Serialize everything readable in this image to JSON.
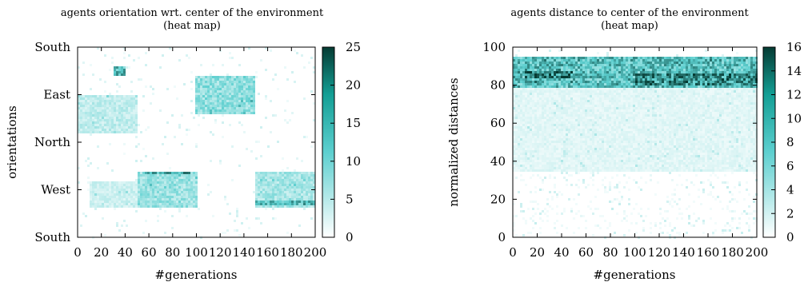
{
  "chart_data": [
    {
      "type": "heatmap",
      "title": "agents orientation wrt. center of the environment",
      "subtitle": "(heat map)",
      "xlabel": "#generations",
      "ylabel": "orientations",
      "xlim": [
        0,
        200
      ],
      "x_ticks": [
        "0",
        "20",
        "40",
        "60",
        "80",
        "100",
        "120",
        "140",
        "160",
        "180",
        "200"
      ],
      "y_ticks": [
        "South",
        "West",
        "North",
        "East",
        "South"
      ],
      "colorbar": {
        "range": [
          0,
          25
        ],
        "ticks": [
          "0",
          "5",
          "10",
          "15",
          "20",
          "25"
        ],
        "low_color": "#ffffff",
        "mid_color": "#5ccfcf",
        "high_color": "#063b33"
      },
      "bands": [
        {
          "x": [
            0,
            50
          ],
          "y": [
            0.55,
            0.75
          ],
          "value": 5
        },
        {
          "x": [
            10,
            50
          ],
          "y": [
            0.15,
            0.3
          ],
          "value": 4
        },
        {
          "x": [
            30,
            40
          ],
          "y": [
            0.85,
            0.9
          ],
          "value": 15
        },
        {
          "x": [
            50,
            100
          ],
          "y": [
            0.15,
            0.35
          ],
          "value": 8
        },
        {
          "x": [
            55,
            95
          ],
          "y": [
            0.33,
            0.35
          ],
          "value": 16
        },
        {
          "x": [
            100,
            150
          ],
          "y": [
            0.65,
            0.85
          ],
          "value": 9
        },
        {
          "x": [
            150,
            200
          ],
          "y": [
            0.15,
            0.35
          ],
          "value": 7
        },
        {
          "x": [
            150,
            200
          ],
          "y": [
            0.17,
            0.19
          ],
          "value": 14
        }
      ]
    },
    {
      "type": "heatmap",
      "title": "agents distance to center of the environment",
      "subtitle": "(heat map)",
      "xlabel": "#generations",
      "ylabel": "normalized distances",
      "xlim": [
        0,
        200
      ],
      "ylim": [
        0,
        100
      ],
      "x_ticks": [
        "0",
        "20",
        "40",
        "60",
        "80",
        "100",
        "120",
        "140",
        "160",
        "180",
        "200"
      ],
      "y_ticks": [
        "0",
        "20",
        "40",
        "60",
        "80",
        "100"
      ],
      "colorbar": {
        "range": [
          0,
          16
        ],
        "ticks": [
          "0",
          "2",
          "4",
          "6",
          "8",
          "10",
          "12",
          "14",
          "16"
        ],
        "low_color": "#ffffff",
        "mid_color": "#5ccfcf",
        "high_color": "#063b33"
      },
      "bands": [
        {
          "x": [
            0,
            200
          ],
          "y": [
            78,
            95
          ],
          "value": 9
        },
        {
          "x": [
            10,
            50
          ],
          "y": [
            83,
            88
          ],
          "value": 13
        },
        {
          "x": [
            100,
            200
          ],
          "y": [
            80,
            86
          ],
          "value": 12
        },
        {
          "x": [
            0,
            200
          ],
          "y": [
            35,
            78
          ],
          "value": 1.5
        },
        {
          "x": [
            0,
            200
          ],
          "y": [
            0,
            35
          ],
          "value": 0.5
        }
      ]
    }
  ]
}
